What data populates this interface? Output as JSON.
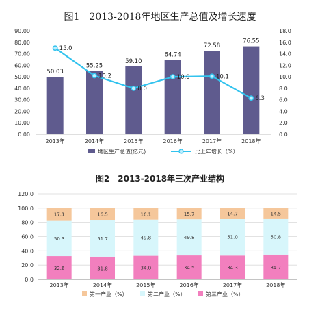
{
  "chart_data": [
    {
      "type": "bar+line",
      "title": "图1　2013-2018年地区生产总值及增长速度",
      "categories": [
        "2013年",
        "2014年",
        "2015年",
        "2016年",
        "2017年",
        "2018年"
      ],
      "bar_series": {
        "name": "地区生产总值(亿元)",
        "values": [
          50.03,
          55.25,
          59.1,
          64.74,
          72.58,
          76.55
        ],
        "color": "#5f5b8e"
      },
      "line_series": {
        "name": "比上年增长（%）",
        "values": [
          15.0,
          10.2,
          8.0,
          10.0,
          10.1,
          6.3
        ],
        "color": "#33c3ee"
      },
      "y_left": {
        "min": 0,
        "max": 90,
        "step": 10,
        "ticks": [
          "0.00",
          "10.00",
          "20.00",
          "30.00",
          "40.00",
          "50.00",
          "60.00",
          "70.00",
          "80.00",
          "90.00"
        ]
      },
      "y_right": {
        "min": 0,
        "max": 18,
        "step": 2,
        "ticks": [
          "0.0",
          "2.0",
          "4.0",
          "6.0",
          "8.0",
          "10.0",
          "12.0",
          "14.0",
          "16.0",
          "18.0"
        ]
      },
      "bar_labels": [
        "50.03",
        "55.25",
        "59.10",
        "64.74",
        "72.58",
        "76.55"
      ],
      "line_labels": [
        "15.0",
        "10.2",
        "8.0",
        "10.0",
        "10.1",
        "6.3"
      ]
    },
    {
      "type": "stacked-bar",
      "title": "图2　2013-2018年三次产业结构",
      "categories": [
        "2013年",
        "2014年",
        "2015年",
        "2016年",
        "2017年",
        "2018年"
      ],
      "series": [
        {
          "name": "第三产业（%）",
          "values": [
            32.6,
            31.8,
            34.0,
            34.5,
            34.3,
            34.7
          ],
          "labels": [
            "32.6",
            "31.8",
            "34.0",
            "34.5",
            "34.3",
            "34.7"
          ],
          "color": "#f27fbe"
        },
        {
          "name": "第二产业（%）",
          "values": [
            50.3,
            51.7,
            49.8,
            49.8,
            51.0,
            50.8
          ],
          "labels": [
            "50.3",
            "51.7",
            "49.8",
            "49.8",
            "51.0",
            "50.8"
          ],
          "color": "#d7f6fb"
        },
        {
          "name": "第一产业（%）",
          "values": [
            17.1,
            16.5,
            16.1,
            15.7,
            14.7,
            14.5
          ],
          "labels": [
            "17.1",
            "16.5",
            "16.1",
            "15.7",
            "14.7",
            "14.5"
          ],
          "color": "#f5c79b"
        }
      ],
      "legend_order": [
        "第一产业（%）",
        "第二产业（%）",
        "第三产业（%）"
      ],
      "y": {
        "min": 0,
        "max": 120,
        "step": 20,
        "ticks": [
          "0.0",
          "20.0",
          "40.0",
          "60.0",
          "80.0",
          "100.0",
          "120.0"
        ]
      }
    }
  ]
}
